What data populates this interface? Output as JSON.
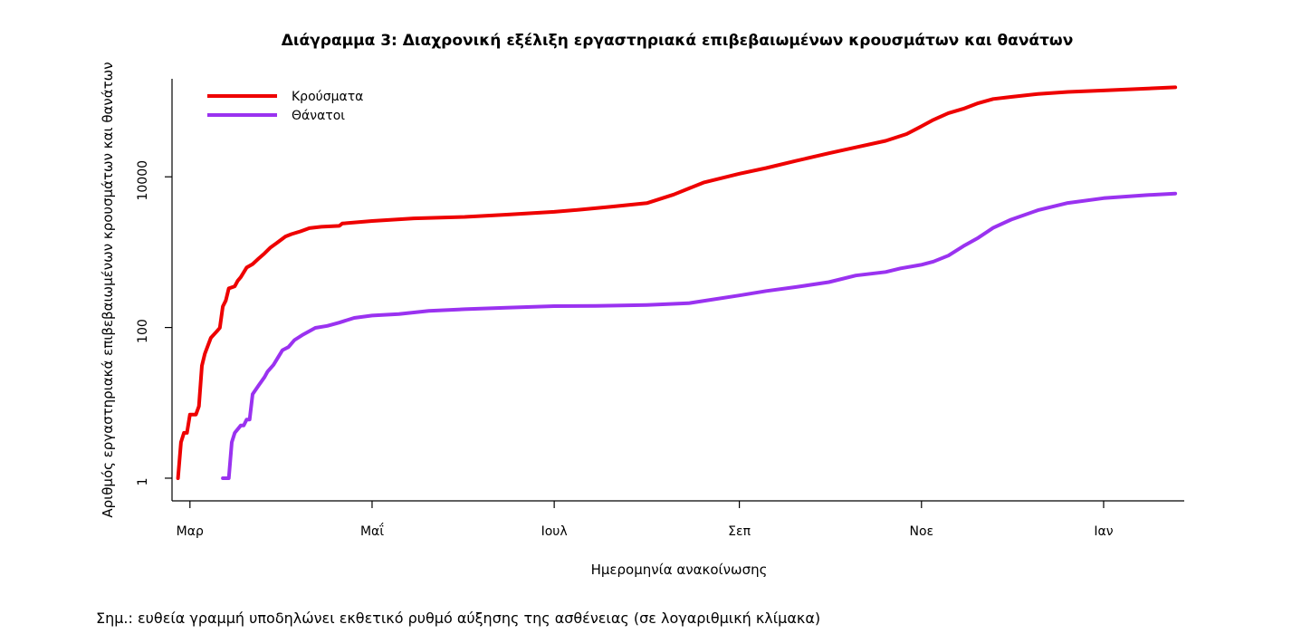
{
  "note": "Σημ.: ευθεία γραμμή υποδηλώνει εκθετικό ρυθμό αύξησης της ασθένειας (σε λογαριθμική κλίμακα)",
  "colors": {
    "cases": "#ee0000",
    "deaths": "#9a32f0",
    "axis": "#000000"
  },
  "chart_data": {
    "type": "line",
    "title": "Διάγραμμα 3: Διαχρονική εξέλιξη εργαστηριακά επιβεβαιωμένων κρουσμάτων και θανάτων",
    "xlabel": "Ημερομηνία ανακοίνωσης",
    "ylabel": "Αριθμός εργαστηριακά επιβεβαιωμένων κρουσμάτων και θανάτων",
    "y_scale": "log",
    "ylim": [
      0.5,
      200000
    ],
    "yticks": [
      1,
      100,
      10000
    ],
    "ytick_labels": [
      "1",
      "100",
      "10000"
    ],
    "xlim": [
      "2020-02-24",
      "2021-01-28"
    ],
    "xticks": [
      "2020-03-01",
      "2020-05-01",
      "2020-07-01",
      "2020-09-01",
      "2020-11-01",
      "2021-01-01"
    ],
    "xtick_labels": [
      "Μαρ",
      "Μαΐ",
      "Ιουλ",
      "Σεπ",
      "Νοε",
      "Ιαν"
    ],
    "legend": {
      "position": "top-left"
    },
    "series": [
      {
        "name": "Κρούσματα",
        "color": "#ee0000",
        "points": [
          [
            "2020-02-26",
            1
          ],
          [
            "2020-02-27",
            3
          ],
          [
            "2020-02-28",
            4
          ],
          [
            "2020-02-29",
            4
          ],
          [
            "2020-03-01",
            7
          ],
          [
            "2020-03-03",
            7
          ],
          [
            "2020-03-04",
            9
          ],
          [
            "2020-03-05",
            31
          ],
          [
            "2020-03-06",
            45
          ],
          [
            "2020-03-08",
            73
          ],
          [
            "2020-03-10",
            89
          ],
          [
            "2020-03-11",
            99
          ],
          [
            "2020-03-12",
            190
          ],
          [
            "2020-03-13",
            228
          ],
          [
            "2020-03-14",
            331
          ],
          [
            "2020-03-16",
            352
          ],
          [
            "2020-03-17",
            418
          ],
          [
            "2020-03-18",
            464
          ],
          [
            "2020-03-20",
            624
          ],
          [
            "2020-03-22",
            695
          ],
          [
            "2020-03-24",
            821
          ],
          [
            "2020-03-26",
            966
          ],
          [
            "2020-03-28",
            1156
          ],
          [
            "2020-03-30",
            1314
          ],
          [
            "2020-04-02",
            1613
          ],
          [
            "2020-04-04",
            1735
          ],
          [
            "2020-04-07",
            1884
          ],
          [
            "2020-04-10",
            2081
          ],
          [
            "2020-04-14",
            2170
          ],
          [
            "2020-04-20",
            2235
          ],
          [
            "2020-04-21",
            2401
          ],
          [
            "2020-05-01",
            2591
          ],
          [
            "2020-05-15",
            2810
          ],
          [
            "2020-06-01",
            2937
          ],
          [
            "2020-06-15",
            3148
          ],
          [
            "2020-07-01",
            3432
          ],
          [
            "2020-07-10",
            3672
          ],
          [
            "2020-07-20",
            4007
          ],
          [
            "2020-08-01",
            4477
          ],
          [
            "2020-08-10",
            5823
          ],
          [
            "2020-08-20",
            8381
          ],
          [
            "2020-09-01",
            10998
          ],
          [
            "2020-09-10",
            13095
          ],
          [
            "2020-09-20",
            16286
          ],
          [
            "2020-10-01",
            20541
          ],
          [
            "2020-10-10",
            24574
          ],
          [
            "2020-10-20",
            29992
          ],
          [
            "2020-10-27",
            36932
          ],
          [
            "2020-11-01",
            46892
          ],
          [
            "2020-11-05",
            57000
          ],
          [
            "2020-11-10",
            70000
          ],
          [
            "2020-11-15",
            80000
          ],
          [
            "2020-11-20",
            95000
          ],
          [
            "2020-11-25",
            108000
          ],
          [
            "2020-12-01",
            115000
          ],
          [
            "2020-12-10",
            126000
          ],
          [
            "2020-12-20",
            134000
          ],
          [
            "2021-01-01",
            140000
          ],
          [
            "2021-01-15",
            148000
          ],
          [
            "2021-01-25",
            154000
          ]
        ]
      },
      {
        "name": "Θάνατοι",
        "color": "#9a32f0",
        "points": [
          [
            "2020-03-12",
            1
          ],
          [
            "2020-03-14",
            1
          ],
          [
            "2020-03-15",
            3
          ],
          [
            "2020-03-16",
            4
          ],
          [
            "2020-03-18",
            5
          ],
          [
            "2020-03-19",
            5
          ],
          [
            "2020-03-20",
            6
          ],
          [
            "2020-03-21",
            6
          ],
          [
            "2020-03-22",
            13
          ],
          [
            "2020-03-24",
            17
          ],
          [
            "2020-03-26",
            22
          ],
          [
            "2020-03-27",
            26
          ],
          [
            "2020-03-29",
            32
          ],
          [
            "2020-04-01",
            50
          ],
          [
            "2020-04-03",
            55
          ],
          [
            "2020-04-05",
            68
          ],
          [
            "2020-04-08",
            81
          ],
          [
            "2020-04-12",
            99
          ],
          [
            "2020-04-16",
            105
          ],
          [
            "2020-04-20",
            116
          ],
          [
            "2020-04-25",
            134
          ],
          [
            "2020-05-01",
            144
          ],
          [
            "2020-05-10",
            151
          ],
          [
            "2020-05-20",
            166
          ],
          [
            "2020-06-01",
            175
          ],
          [
            "2020-06-15",
            183
          ],
          [
            "2020-07-01",
            192
          ],
          [
            "2020-07-15",
            193
          ],
          [
            "2020-08-01",
            199
          ],
          [
            "2020-08-15",
            210
          ],
          [
            "2020-09-01",
            266
          ],
          [
            "2020-09-10",
            305
          ],
          [
            "2020-09-20",
            345
          ],
          [
            "2020-10-01",
            400
          ],
          [
            "2020-10-10",
            490
          ],
          [
            "2020-10-20",
            545
          ],
          [
            "2020-10-25",
            610
          ],
          [
            "2020-11-01",
            680
          ],
          [
            "2020-11-05",
            750
          ],
          [
            "2020-11-10",
            900
          ],
          [
            "2020-11-15",
            1200
          ],
          [
            "2020-11-20",
            1550
          ],
          [
            "2020-11-25",
            2100
          ],
          [
            "2020-12-01",
            2700
          ],
          [
            "2020-12-10",
            3600
          ],
          [
            "2020-12-20",
            4500
          ],
          [
            "2021-01-01",
            5200
          ],
          [
            "2021-01-15",
            5700
          ],
          [
            "2021-01-25",
            6000
          ]
        ]
      }
    ]
  }
}
